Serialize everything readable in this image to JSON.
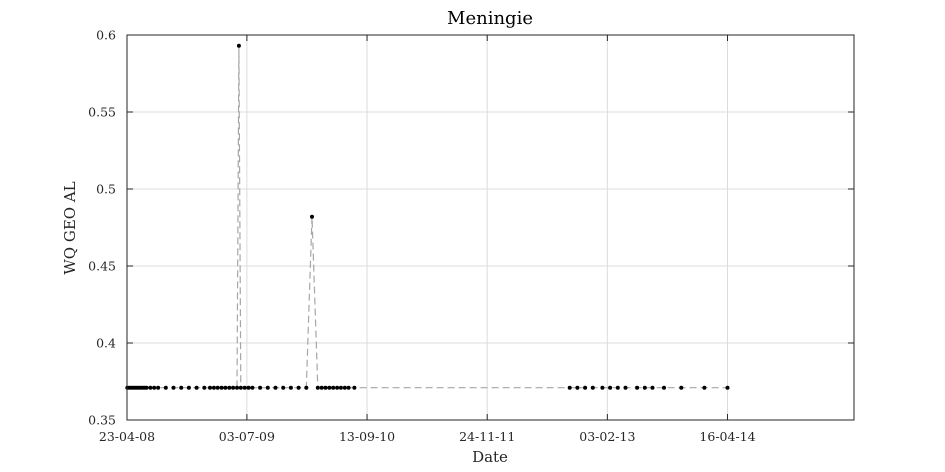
{
  "chart_data": {
    "type": "line",
    "title": "Meningie",
    "xlabel": "Date",
    "ylabel": "WQ GEO AL",
    "x_tick_labels": [
      "23-04-08",
      "03-07-09",
      "13-09-10",
      "24-11-11",
      "03-02-13",
      "16-04-14"
    ],
    "y_tick_labels": [
      "0.35",
      "0.4",
      "0.45",
      "0.5",
      "0.55",
      "0.6"
    ],
    "ylim": [
      0.35,
      0.6
    ],
    "xlim": [
      "2008-04-23",
      "2015-07-20"
    ],
    "grid": true,
    "line_style": "dashed",
    "line_color": "#a6a6a6",
    "marker_color": "#000000",
    "series": [
      {
        "x": [
          "2008-04-24",
          "2008-05-01",
          "2008-05-08",
          "2008-05-15",
          "2008-05-22",
          "2008-05-29",
          "2008-06-05",
          "2008-06-12",
          "2008-06-19",
          "2008-06-26",
          "2008-07-03",
          "2008-07-17",
          "2008-07-31",
          "2008-08-14",
          "2008-09-11",
          "2008-10-09",
          "2008-11-06",
          "2008-12-04",
          "2009-01-01",
          "2009-01-29",
          "2009-02-19",
          "2009-03-05",
          "2009-03-19",
          "2009-04-02",
          "2009-04-16",
          "2009-04-30",
          "2009-05-14",
          "2009-05-28",
          "2009-06-04",
          "2009-06-11",
          "2009-06-25",
          "2009-07-09",
          "2009-07-23",
          "2009-08-20",
          "2009-09-17",
          "2009-10-15",
          "2009-11-12",
          "2009-12-10",
          "2010-01-07",
          "2010-02-04",
          "2010-02-25",
          "2010-03-18",
          "2010-04-01",
          "2010-04-15",
          "2010-04-29",
          "2010-05-13",
          "2010-05-27",
          "2010-06-10",
          "2010-06-24",
          "2010-07-08",
          "2010-07-29",
          "2012-09-19",
          "2012-10-17",
          "2012-11-14",
          "2012-12-12",
          "2013-01-16",
          "2013-02-13",
          "2013-03-13",
          "2013-04-10",
          "2013-05-22",
          "2013-06-19",
          "2013-07-17",
          "2013-08-28",
          "2013-10-30",
          "2014-01-22",
          "2014-04-16"
        ],
        "values": [
          0.371,
          0.371,
          0.371,
          0.371,
          0.371,
          0.371,
          0.371,
          0.371,
          0.371,
          0.371,
          0.371,
          0.371,
          0.371,
          0.371,
          0.371,
          0.371,
          0.371,
          0.371,
          0.371,
          0.371,
          0.371,
          0.371,
          0.371,
          0.371,
          0.371,
          0.371,
          0.371,
          0.371,
          0.593,
          0.371,
          0.371,
          0.371,
          0.371,
          0.371,
          0.371,
          0.371,
          0.371,
          0.371,
          0.371,
          0.371,
          0.482,
          0.371,
          0.371,
          0.371,
          0.371,
          0.371,
          0.371,
          0.371,
          0.371,
          0.371,
          0.371,
          0.371,
          0.371,
          0.371,
          0.371,
          0.371,
          0.371,
          0.371,
          0.371,
          0.371,
          0.371,
          0.371,
          0.371,
          0.371,
          0.371,
          0.371
        ]
      }
    ]
  }
}
